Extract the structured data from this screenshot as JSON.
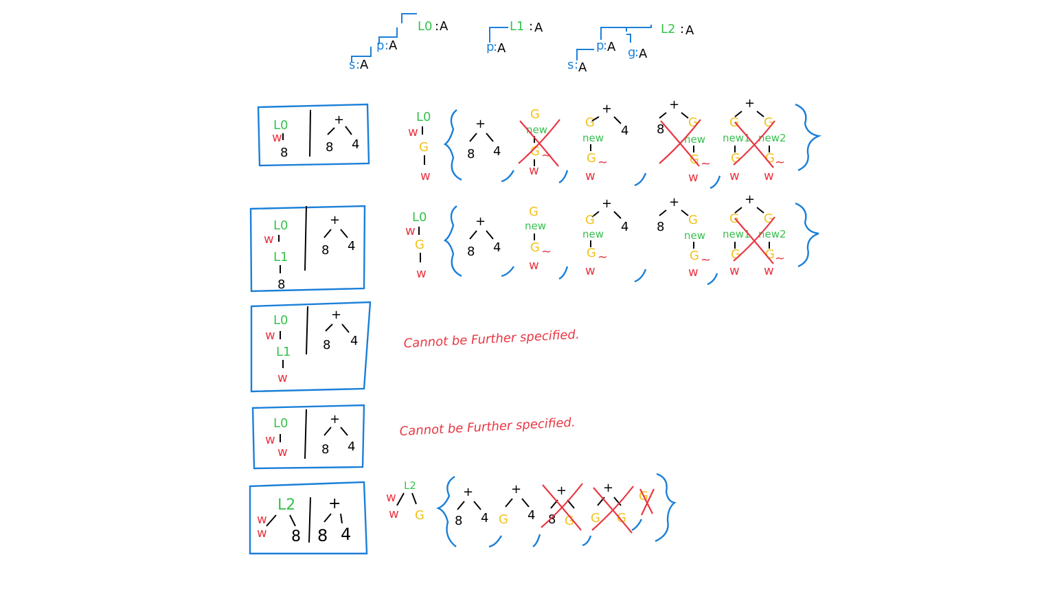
{
  "colors": {
    "black": "#000000",
    "green": "#36c24d",
    "blue": "#1a7fd8",
    "yellow": "#f2c21b",
    "red": "#e83642"
  },
  "legend": {
    "l0": {
      "name": "L0",
      "type": "A"
    },
    "p0": {
      "name": "p",
      "type": "A"
    },
    "s0": {
      "name": "s",
      "type": "A"
    },
    "l1": {
      "name": "L1",
      "type": "A"
    },
    "p1": {
      "name": "p",
      "type": "A"
    },
    "l2": {
      "name": "L2",
      "type": "A"
    },
    "p2": {
      "name": "p",
      "type": "A"
    },
    "g2": {
      "name": "g",
      "type": "A"
    },
    "s2": {
      "name": "s",
      "type": "A"
    }
  },
  "rows": [
    {
      "pattern": {
        "top": "L0",
        "mid": "w",
        "leaf": "8"
      },
      "target": {
        "op": "+",
        "left": "8",
        "right": "4"
      },
      "pattern_tree": {
        "root": "L0",
        "edge": "w",
        "child": "G",
        "leaf": "w"
      },
      "candidates": [
        {
          "op": "+",
          "left": "8",
          "right": "4"
        },
        {
          "g": "G",
          "label": "new",
          "child": "G",
          "tilde": "~",
          "leaf": "w"
        },
        {
          "op": "+",
          "g": "G",
          "label": "new",
          "child": "G",
          "tilde": "~",
          "leaf": "w",
          "right": "4"
        },
        {
          "op": "+",
          "left": "8",
          "g": "G",
          "label": "new",
          "child": "G",
          "tilde": "~",
          "leaf": "w"
        },
        {
          "op": "+",
          "g1": "G",
          "label1": "new1",
          "child1": "G",
          "leaf1": "w",
          "g2": "G",
          "label2": "new2",
          "child2": "G",
          "leaf2": "w",
          "tilde": "~"
        }
      ]
    },
    {
      "pattern": {
        "top": "L0",
        "mid": "w",
        "sub": "L1",
        "leaf": "8"
      },
      "target": {
        "op": "+",
        "left": "8",
        "right": "4"
      },
      "pattern_tree": {
        "root": "L0",
        "edge": "w",
        "child": "G",
        "leaf": "w"
      },
      "candidates": [
        {
          "op": "+",
          "left": "8",
          "right": "4"
        },
        {
          "g": "G",
          "label": "new",
          "child": "G",
          "tilde": "~",
          "leaf": "w"
        },
        {
          "op": "+",
          "g": "G",
          "label": "new",
          "child": "G",
          "tilde": "~",
          "leaf": "w",
          "right": "4"
        },
        {
          "op": "+",
          "left": "8",
          "g": "G",
          "label": "new",
          "child": "G",
          "tilde": "~",
          "leaf": "w"
        },
        {
          "op": "+",
          "g1": "G",
          "label1": "new1",
          "child1": "G",
          "leaf1": "w",
          "g2": "G",
          "label2": "new2",
          "child2": "G",
          "leaf2": "w",
          "tilde": "~"
        }
      ]
    },
    {
      "pattern": {
        "top": "L0",
        "mid": "w",
        "sub": "L1",
        "leaf": "w"
      },
      "target": {
        "op": "+",
        "left": "8",
        "right": "4"
      },
      "note": "Cannot be Further specified."
    },
    {
      "pattern": {
        "top": "L0",
        "mid": "w",
        "leaf": "w"
      },
      "target": {
        "op": "+",
        "left": "8",
        "right": "4"
      },
      "note": "Cannot be Further specified."
    },
    {
      "pattern": {
        "top": "L2",
        "w1": "w",
        "w2": "w",
        "leaf": "8"
      },
      "target": {
        "op": "+",
        "left": "8",
        "right": "4"
      },
      "pattern_tree": {
        "root": "L2",
        "w_top": "w",
        "w_bottom": "w",
        "right": "G"
      },
      "candidates": [
        {
          "op": "+",
          "left": "8",
          "right": "4"
        },
        {
          "op": "+",
          "left": "G",
          "right": "4"
        },
        {
          "op": "+",
          "left": "8",
          "right": "G"
        },
        {
          "op": "+",
          "left": "G",
          "right": "G"
        },
        {
          "g": "G"
        }
      ]
    }
  ]
}
